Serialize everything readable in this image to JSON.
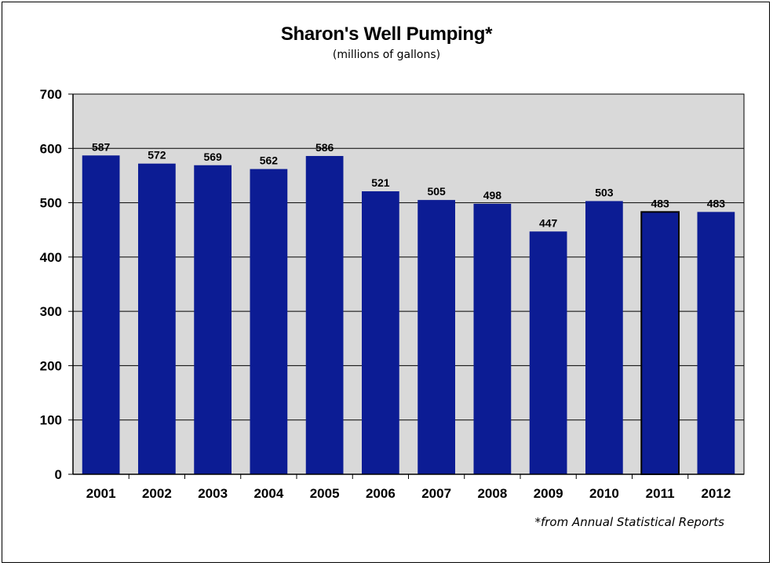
{
  "chart_data": {
    "type": "bar",
    "title": "Sharon's Well Pumping*",
    "subtitle": "(millions of gallons)",
    "footnote": "*from Annual Statistical Reports",
    "categories": [
      "2001",
      "2002",
      "2003",
      "2004",
      "2005",
      "2006",
      "2007",
      "2008",
      "2009",
      "2010",
      "2011",
      "2012"
    ],
    "values": [
      587,
      572,
      569,
      562,
      586,
      521,
      505,
      498,
      447,
      503,
      483,
      483
    ],
    "ylim": [
      0,
      700
    ],
    "yticks": [
      0,
      100,
      200,
      300,
      400,
      500,
      600,
      700
    ],
    "grid": true,
    "legend": "none",
    "colors": {
      "bar": "#0c1c94",
      "plot_background": "#d9d9d9",
      "highlight_outline": "#000000"
    },
    "highlighted_category": "2011"
  }
}
